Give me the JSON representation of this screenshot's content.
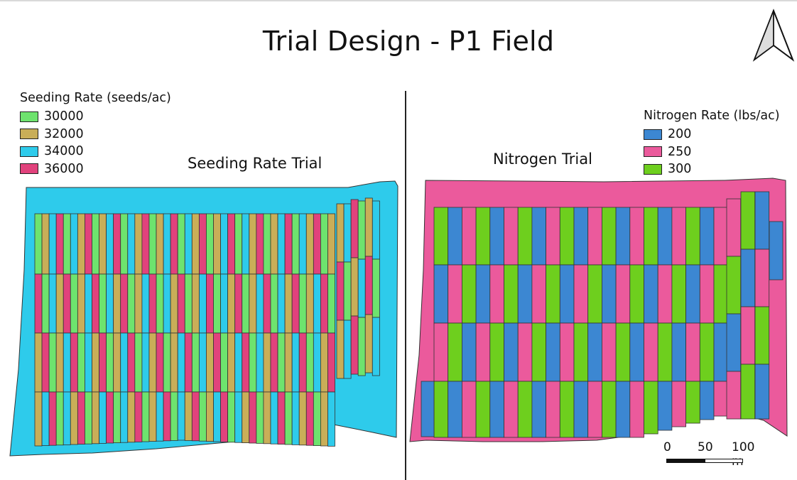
{
  "title": "Trial Design - P1 Field",
  "north_arrow": {
    "icon": "north-arrow-icon"
  },
  "seeding": {
    "subtitle": "Seeding Rate Trial",
    "legend": {
      "title": "Seeding Rate (seeds/ac)",
      "items": [
        {
          "label": "30000",
          "color": "#6ee36e"
        },
        {
          "label": "32000",
          "color": "#c9ae58"
        },
        {
          "label": "34000",
          "color": "#2ecbeb"
        },
        {
          "label": "36000",
          "color": "#e1427c"
        }
      ]
    },
    "field_color": "#2ecbeb"
  },
  "nitrogen": {
    "subtitle": "Nitrogen Trial",
    "legend": {
      "title": "Nitrogen Rate (lbs/ac)",
      "items": [
        {
          "label": "200",
          "color": "#3c87d2"
        },
        {
          "label": "250",
          "color": "#eb5a9c"
        },
        {
          "label": "300",
          "color": "#6ecf1e"
        }
      ]
    },
    "field_color": "#eb5a9c"
  },
  "scale": {
    "labels": [
      "0",
      "50",
      "100 m"
    ]
  }
}
